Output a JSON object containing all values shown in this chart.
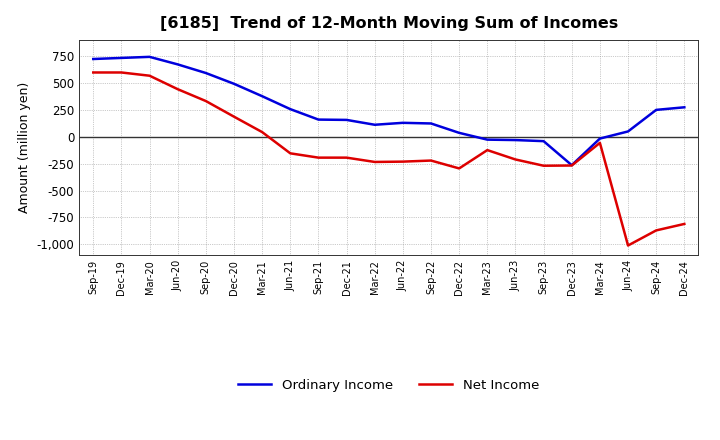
{
  "title": "[6185]  Trend of 12-Month Moving Sum of Incomes",
  "ylabel": "Amount (million yen)",
  "background_color": "#ffffff",
  "plot_background_color": "#ffffff",
  "grid_color": "#999999",
  "zero_line_color": "#333333",
  "x_labels": [
    "Sep-19",
    "Dec-19",
    "Mar-20",
    "Jun-20",
    "Sep-20",
    "Dec-20",
    "Mar-21",
    "Jun-21",
    "Sep-21",
    "Dec-21",
    "Mar-22",
    "Jun-22",
    "Sep-22",
    "Dec-22",
    "Mar-23",
    "Jun-23",
    "Sep-23",
    "Dec-23",
    "Mar-24",
    "Jun-24",
    "Sep-24",
    "Dec-24"
  ],
  "ordinary_income": [
    720,
    730,
    740,
    670,
    590,
    490,
    375,
    255,
    158,
    155,
    110,
    128,
    122,
    35,
    -28,
    -32,
    -42,
    -265,
    -18,
    48,
    248,
    272
  ],
  "net_income": [
    595,
    595,
    565,
    440,
    330,
    185,
    42,
    -155,
    -195,
    -195,
    -235,
    -232,
    -222,
    -295,
    -125,
    -212,
    -270,
    -268,
    -58,
    -1010,
    -870,
    -810
  ],
  "ylim": [
    -1100,
    900
  ],
  "yticks": [
    -1000,
    -750,
    -500,
    -250,
    0,
    250,
    500,
    750
  ],
  "ordinary_color": "#0000dd",
  "net_color": "#dd0000",
  "line_width": 1.8
}
